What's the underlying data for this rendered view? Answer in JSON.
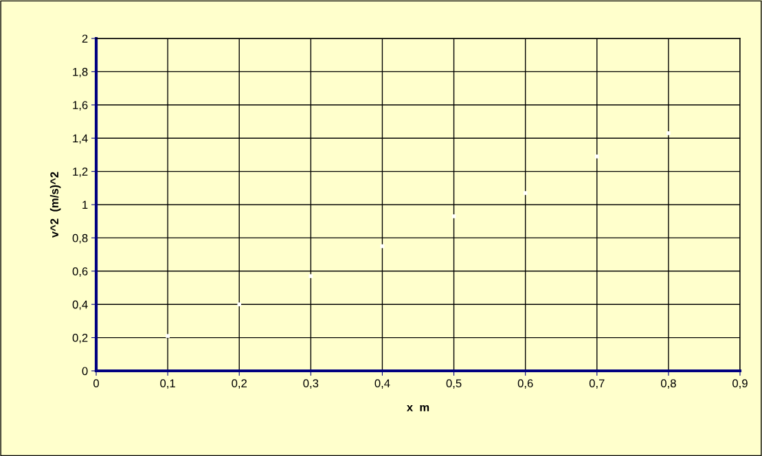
{
  "chart_data": {
    "type": "scatter",
    "xlabel": "x  m",
    "ylabel": "v^2  (m/s)^2",
    "x": [
      0.1,
      0.2,
      0.3,
      0.4,
      0.5,
      0.6,
      0.7,
      0.8
    ],
    "series": [
      {
        "color": "#ffffff",
        "values": [
          0.21,
          0.4,
          0.57,
          0.75,
          0.93,
          1.07,
          1.29,
          1.43
        ]
      }
    ],
    "marker": "square",
    "grid": true,
    "xlim": [
      0,
      0.9
    ],
    "ylim": [
      0,
      2
    ],
    "xticks": [
      0,
      {
        "value": 0.1,
        "label": "0,1"
      },
      {
        "value": 0.2,
        "label": "0,2"
      },
      {
        "value": 0.3,
        "label": "0,3"
      },
      {
        "value": 0.4,
        "label": "0,4"
      },
      {
        "value": 0.5,
        "label": "0,5"
      },
      {
        "value": 0.6,
        "label": "0,6"
      },
      {
        "value": 0.7,
        "label": "0,7"
      },
      {
        "value": 0.8,
        "label": "0,8"
      },
      {
        "value": 0.9,
        "label": "0,9"
      }
    ],
    "yticks": [
      0,
      {
        "value": 0.2,
        "label": "0,2"
      },
      {
        "value": 0.4,
        "label": "0,4"
      },
      {
        "value": 0.6,
        "label": "0,6"
      },
      {
        "value": 0.8,
        "label": "0,8"
      },
      1,
      {
        "value": 1.2,
        "label": "1,2"
      },
      {
        "value": 1.4,
        "label": "1,4"
      },
      {
        "value": 1.6,
        "label": "1,6"
      },
      {
        "value": 1.8,
        "label": "1,8"
      },
      2
    ]
  }
}
